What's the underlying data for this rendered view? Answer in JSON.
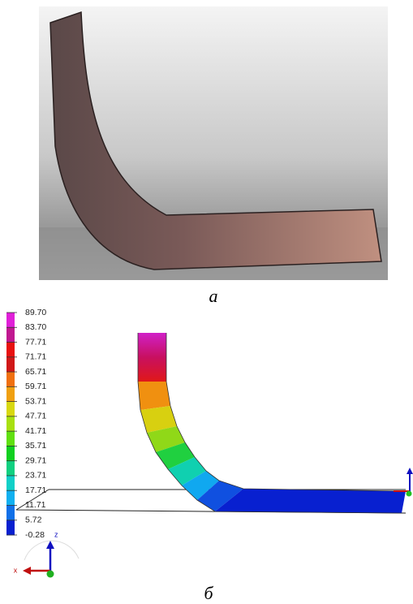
{
  "captions": {
    "photo": "а",
    "simulation": "б"
  },
  "colorbar": {
    "labels": [
      "89.70",
      "83.70",
      "77.71",
      "71.71",
      "65.71",
      "59.71",
      "53.71",
      "47.71",
      "41.71",
      "35.71",
      "29.71",
      "23.71",
      "17.71",
      "11.71",
      "5.72",
      "-0.28"
    ],
    "colors": [
      "#e020d8",
      "#c01890",
      "#e81010",
      "#d01818",
      "#f07010",
      "#f0a010",
      "#d8d810",
      "#a8e010",
      "#60e010",
      "#10d020",
      "#10d080",
      "#10d0c8",
      "#10b0f0",
      "#1070e8",
      "#0820d0"
    ]
  },
  "axes": {
    "x": "x",
    "z": "z"
  }
}
